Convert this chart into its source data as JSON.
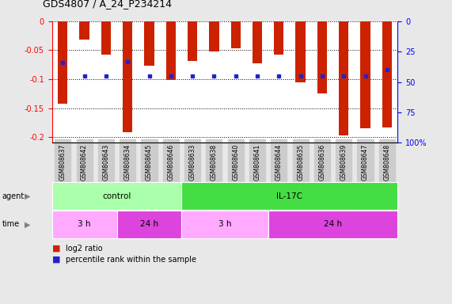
{
  "title": "GDS4807 / A_24_P234214",
  "samples": [
    "GSM808637",
    "GSM808642",
    "GSM808643",
    "GSM808634",
    "GSM808645",
    "GSM808646",
    "GSM808633",
    "GSM808638",
    "GSM808640",
    "GSM808641",
    "GSM808644",
    "GSM808635",
    "GSM808636",
    "GSM808639",
    "GSM808647",
    "GSM808648"
  ],
  "log2_ratio": [
    -0.143,
    -0.032,
    -0.057,
    -0.192,
    -0.077,
    -0.102,
    -0.068,
    -0.052,
    -0.047,
    -0.073,
    -0.057,
    -0.105,
    -0.125,
    -0.197,
    -0.185,
    -0.183
  ],
  "percentile": [
    34,
    45,
    45,
    33,
    45,
    45,
    45,
    45,
    45,
    45,
    45,
    45,
    45,
    45,
    45,
    40
  ],
  "ylim_min": -0.21,
  "ylim_max": 0.0,
  "yticks": [
    0,
    -0.05,
    -0.1,
    -0.15,
    -0.2
  ],
  "bar_color": "#cc2200",
  "dot_color": "#2222cc",
  "figure_bg": "#e8e8e8",
  "plot_bg": "#ffffff",
  "agent_groups": [
    {
      "label": "control",
      "start": 0,
      "end": 6,
      "color": "#aaffaa"
    },
    {
      "label": "IL-17C",
      "start": 6,
      "end": 16,
      "color": "#44dd44"
    }
  ],
  "time_groups": [
    {
      "label": "3 h",
      "start": 0,
      "end": 3,
      "color": "#ffaaff"
    },
    {
      "label": "24 h",
      "start": 3,
      "end": 6,
      "color": "#dd44dd"
    },
    {
      "label": "3 h",
      "start": 6,
      "end": 10,
      "color": "#ffaaff"
    },
    {
      "label": "24 h",
      "start": 10,
      "end": 16,
      "color": "#dd44dd"
    }
  ],
  "right_ylabels": [
    "0",
    "25",
    "50",
    "75",
    "100%"
  ],
  "right_pct": [
    0,
    25,
    50,
    75,
    100
  ],
  "tick_bg": "#cccccc"
}
